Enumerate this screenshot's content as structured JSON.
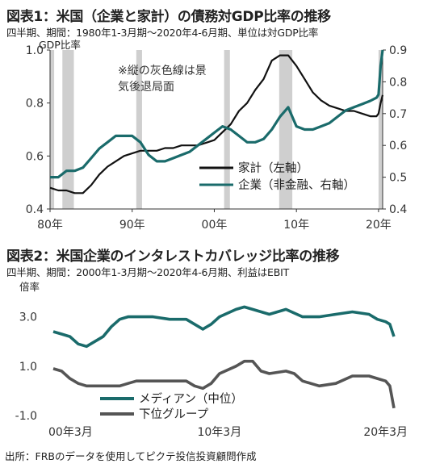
{
  "chart_data": [
    {
      "type": "line",
      "title": "図表1：米国（企業と家計）の債務対GDP比率の推移",
      "subtitle": "四半期、期間：1980年1-3月期～2020年4-6月期、単位は対GDP比率",
      "ylabel_left": "GDP比率",
      "x_tick_labels": [
        "80年",
        "90年",
        "00年",
        "10年",
        "20年"
      ],
      "x_tick_values": [
        1980,
        1990,
        2000,
        2010,
        2020
      ],
      "xlim": [
        1980,
        2020.5
      ],
      "ylim_left": [
        0.4,
        1.0
      ],
      "ylim_right": [
        0.4,
        0.9
      ],
      "y_ticks_left": [
        "0.4",
        "0.6",
        "0.8",
        "1.0"
      ],
      "y_ticks_left_values": [
        0.4,
        0.6,
        0.8,
        1.0
      ],
      "y_ticks_right": [
        "0.4",
        "0.5",
        "0.6",
        "0.7",
        "0.8",
        "0.9"
      ],
      "y_ticks_right_values": [
        0.4,
        0.5,
        0.6,
        0.7,
        0.8,
        0.9
      ],
      "annotation": [
        "※縦の灰色線は景",
        "気後退局面"
      ],
      "recessions": [
        [
          1980.0,
          1980.5
        ],
        [
          1981.5,
          1982.9
        ],
        [
          1990.5,
          1991.2
        ],
        [
          2001.2,
          2001.9
        ],
        [
          2007.9,
          2009.5
        ],
        [
          2020.0,
          2020.5
        ]
      ],
      "series": [
        {
          "name": "家計（左軸）",
          "axis": "left",
          "color": "#111111",
          "x": [
            1980,
            1981,
            1982,
            1983,
            1984,
            1985,
            1986,
            1987,
            1988,
            1989,
            1990,
            1991,
            1992,
            1993,
            1994,
            1995,
            1996,
            1997,
            1998,
            1999,
            2000,
            2001,
            2002,
            2003,
            2004,
            2005,
            2006,
            2007,
            2008,
            2009,
            2010,
            2011,
            2012,
            2013,
            2014,
            2015,
            2016,
            2017,
            2018,
            2019,
            2019.75,
            2020.0,
            2020.25,
            2020.5
          ],
          "values": [
            0.48,
            0.47,
            0.47,
            0.46,
            0.46,
            0.49,
            0.53,
            0.56,
            0.58,
            0.6,
            0.61,
            0.62,
            0.62,
            0.62,
            0.63,
            0.63,
            0.64,
            0.64,
            0.64,
            0.65,
            0.66,
            0.69,
            0.72,
            0.77,
            0.8,
            0.85,
            0.89,
            0.96,
            0.98,
            0.98,
            0.94,
            0.89,
            0.84,
            0.81,
            0.79,
            0.78,
            0.77,
            0.77,
            0.76,
            0.75,
            0.75,
            0.76,
            0.8,
            0.83
          ]
        },
        {
          "name": "企業（非金融、右軸）",
          "axis": "right",
          "color": "#1a6b6b",
          "x": [
            1980,
            1981,
            1982,
            1983,
            1984,
            1985,
            1986,
            1987,
            1988,
            1989,
            1990,
            1991,
            1992,
            1993,
            1994,
            1995,
            1996,
            1997,
            1998,
            1999,
            2000,
            2001,
            2002,
            2003,
            2004,
            2005,
            2006,
            2007,
            2008,
            2009,
            2010,
            2011,
            2012,
            2013,
            2014,
            2015,
            2016,
            2017,
            2018,
            2019,
            2019.75,
            2020.0,
            2020.25,
            2020.5
          ],
          "values": [
            0.5,
            0.5,
            0.52,
            0.52,
            0.53,
            0.56,
            0.59,
            0.61,
            0.63,
            0.63,
            0.63,
            0.61,
            0.57,
            0.55,
            0.55,
            0.56,
            0.57,
            0.58,
            0.6,
            0.62,
            0.64,
            0.66,
            0.65,
            0.63,
            0.61,
            0.61,
            0.62,
            0.65,
            0.69,
            0.72,
            0.66,
            0.65,
            0.65,
            0.66,
            0.67,
            0.69,
            0.71,
            0.72,
            0.73,
            0.74,
            0.75,
            0.76,
            0.85,
            0.9
          ]
        }
      ]
    },
    {
      "type": "line",
      "title": "図表2：米国企業のインタレストカバレッジ比率の推移",
      "subtitle": "四半期、期間：2000年1-3月期～2020年4-6月期、利益はEBIT",
      "ylabel": "倍率",
      "x_tick_labels": [
        "00年3月",
        "10年3月",
        "20年3月"
      ],
      "x_tick_values": [
        2000,
        2010,
        2020
      ],
      "xlim": [
        2000,
        2020.5
      ],
      "ylim": [
        -1.0,
        4.0
      ],
      "y_ticks": [
        "3.0",
        "1.0",
        "-1.0"
      ],
      "y_tick_values": [
        3.0,
        1.0,
        -1.0
      ],
      "series": [
        {
          "name": "メディアン（中位）",
          "color": "#1a6b6b",
          "x": [
            2000,
            2000.5,
            2001,
            2001.5,
            2002,
            2002.5,
            2003,
            2003.5,
            2004,
            2004.5,
            2005,
            2006,
            2007,
            2008,
            2008.5,
            2009,
            2009.5,
            2010,
            2011,
            2011.5,
            2012,
            2013,
            2014,
            2015,
            2016,
            2017,
            2018,
            2019,
            2019.5,
            2020,
            2020.25,
            2020.5
          ],
          "values": [
            2.4,
            2.3,
            2.2,
            1.9,
            1.8,
            2.0,
            2.2,
            2.6,
            2.9,
            3.0,
            3.0,
            3.0,
            2.9,
            2.9,
            2.7,
            2.5,
            2.7,
            3.0,
            3.3,
            3.4,
            3.3,
            3.1,
            3.3,
            3.0,
            3.0,
            3.1,
            3.2,
            3.1,
            2.9,
            2.8,
            2.7,
            2.2
          ]
        },
        {
          "name": "下位グループ",
          "color": "#555555",
          "x": [
            2000,
            2000.5,
            2001,
            2001.5,
            2002,
            2002.5,
            2003,
            2004,
            2004.5,
            2005,
            2006,
            2007,
            2008,
            2008.5,
            2009,
            2009.5,
            2010,
            2011,
            2011.5,
            2012,
            2012.5,
            2013,
            2014,
            2014.5,
            2015,
            2016,
            2017,
            2018,
            2019,
            2019.5,
            2020,
            2020.25,
            2020.5
          ],
          "values": [
            0.9,
            0.8,
            0.5,
            0.3,
            0.2,
            0.2,
            0.2,
            0.2,
            0.3,
            0.4,
            0.4,
            0.4,
            0.4,
            0.2,
            0.1,
            0.3,
            0.7,
            1.0,
            1.2,
            1.2,
            0.8,
            0.7,
            0.8,
            0.7,
            0.4,
            0.2,
            0.3,
            0.6,
            0.6,
            0.5,
            0.4,
            0.2,
            -0.7
          ]
        }
      ]
    }
  ],
  "footer": {
    "source": "出所：FRBのデータを使用してピクテ投信投資顧問作成"
  }
}
